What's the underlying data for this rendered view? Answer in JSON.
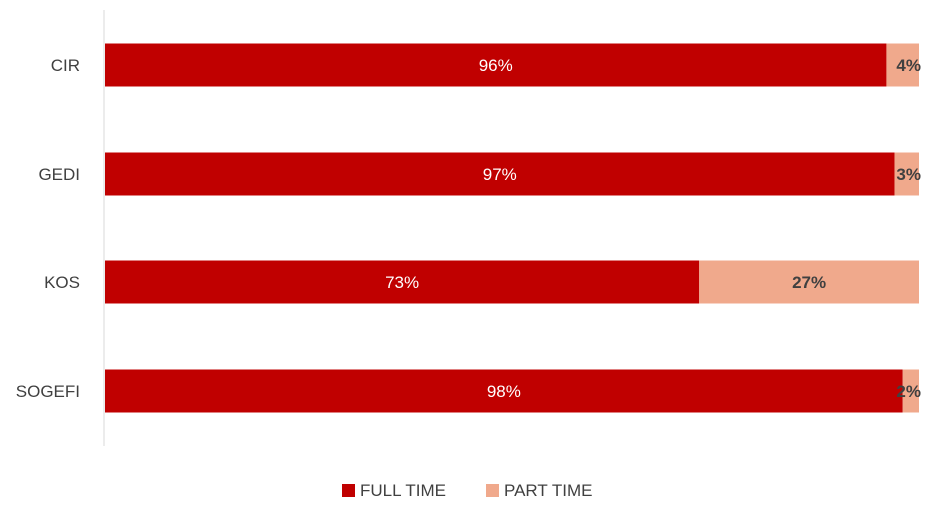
{
  "chart_data": {
    "type": "bar",
    "orientation": "horizontal",
    "stacked": "percent",
    "categories": [
      "CIR",
      "GEDI",
      "KOS",
      "SOGEFI"
    ],
    "series": [
      {
        "name": "FULL TIME",
        "values": [
          96,
          97,
          73,
          98
        ],
        "color": "#C00000",
        "labels": [
          "96%",
          "97%",
          "73%",
          "98%"
        ]
      },
      {
        "name": "PART TIME",
        "values": [
          4,
          3,
          27,
          2
        ],
        "color": "#F0A98C",
        "labels": [
          "4%",
          "3%",
          "27%",
          "2%"
        ]
      }
    ],
    "xlim": [
      0,
      100
    ],
    "grid": false,
    "legend": "bottom-center"
  }
}
